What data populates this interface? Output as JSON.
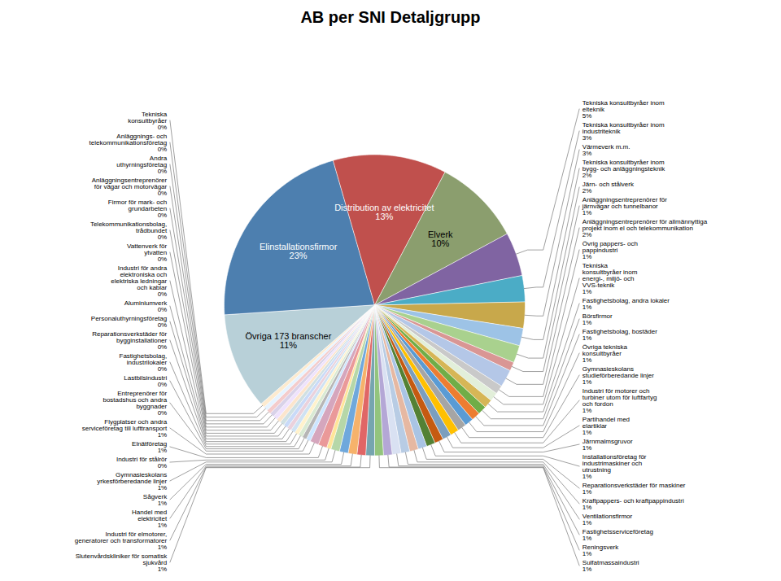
{
  "chart_data": {
    "type": "pie",
    "title": "AB per SNI Detaljgrupp",
    "categories": [
      "Elinstallationsfirmor",
      "Distribution av elektricitet",
      "Elverk",
      "Tekniska konsultbyråer inom\nelteknik",
      "Tekniska konsultbyråer inom\nindustriteknik",
      "Värmeverk m.m.",
      "Tekniska konsultbyråer inom\nbygg- och anläggningsteknik",
      "Järn- och stålverk",
      "Anläggningsentreprenörer för\njärnvägar och tunnelbanor",
      "Anläggningsentreprenörer för allmännyttiga\nprojekt inom el och telekommunikation",
      "Övrig pappers- och\npappindustri",
      "Tekniska\nkonsultbyråer inom\nenergi-, miljö- och\nVVS-teknik",
      "Fastighetsbolag, andra lokaler",
      "Börsfirmor",
      "Fastighetsbolag, bostäder",
      "Övriga tekniska\nkonsultbyråer",
      "Gymnasieskolans\nstudieförberedande linjer",
      "Industri för motorer och\nturbiner utom för luftfartyg\noch fordon",
      "Partihandel med\nelartiklar",
      "Järnmalmsgruvor",
      "Installationsföretag för\nindustrimaskiner och\nutrustning",
      "Reparationsverkstäder för maskiner",
      "Kraftpappers- och kraftpappindustri",
      "Ventilationsfirmor",
      "Fastighetsserviceföretag",
      "Reningsverk",
      "Sulfatmassaindustri",
      "Slutenvårdskliniker för somatisk\nsjukvård",
      "Industri för elmotorer,\ngeneratorer och transformatorer",
      "Handel med\nelektricitet",
      "Sågverk",
      "Gymnasieskolans\nyrkesförberedande linjer",
      "Industri för stålrör",
      "Elnätföretag",
      "Flygplatser och andra\nserviceföretag till lufttransport",
      "Entreprenörer för\nbostadshus och andra\nbyggnader",
      "Lastbilsindustri",
      "Fastighetsbolag,\nindustrilokaler",
      "Reparationsverkstäder för\nbygginstallationer",
      "Personaluthyrningsföretag",
      "Aluminiumverk",
      "Industri för andra\nelektroniska och\nelektriska ledningar\noch kablar",
      "Vattenverk för\nytvatten",
      "Telekommunikationsbolag,\ntrådbundet",
      "Firmor för mark- och\ngrundarbeten",
      "Anläggningsentreprenörer\nför vägar och motorvägar",
      "Andra\nuthyrningsföretag",
      "Anläggnings- och\ntelekommunikationsföretag",
      "Tekniska\nkonsultbyråer",
      "Övriga 173 branscher"
    ],
    "values": [
      23,
      13,
      10,
      5,
      3,
      3,
      2,
      2,
      1,
      2,
      1,
      1,
      1,
      1,
      1,
      1,
      1,
      1,
      1,
      1,
      1,
      1,
      1,
      1,
      1,
      1,
      1,
      1,
      1,
      1,
      1,
      1,
      0.5,
      1,
      1,
      0.5,
      0.5,
      0.5,
      0.5,
      0.5,
      0.5,
      0.5,
      0.5,
      0.5,
      0.5,
      0.5,
      0.5,
      0.5,
      0.5,
      11
    ],
    "value_labels": [
      "23%",
      "13%",
      "10%",
      "5%",
      "3%",
      "3%",
      "2%",
      "2%",
      "1%",
      "2%",
      "1%",
      "1%",
      "1%",
      "1%",
      "1%",
      "1%",
      "1%",
      "1%",
      "1%",
      "1%",
      "1%",
      "1%",
      "1%",
      "1%",
      "1%",
      "1%",
      "1%",
      "1%",
      "1%",
      "1%",
      "1%",
      "1%",
      "0%",
      "1%",
      "1%",
      "0%",
      "0%",
      "0%",
      "0%",
      "0%",
      "0%",
      "0%",
      "0%",
      "0%",
      "0%",
      "0%",
      "0%",
      "0%",
      "0%",
      "11%"
    ],
    "colors": [
      "#4D7FAF",
      "#C0504D",
      "#8B9E6E",
      "#8064A2",
      "#4BACC6",
      "#C8A84B",
      "#9DC3E6",
      "#A9D18E",
      "#D99694",
      "#B4C7E7",
      "#C9C9C9",
      "#E2EFDA",
      "#D6B656",
      "#70AD47",
      "#ED7D31",
      "#5A9BD4",
      "#A5A5A5",
      "#FFC000",
      "#7B9EBE",
      "#C55A11",
      "#538135",
      "#A9C4E4",
      "#E6B8A2",
      "#B8CCE4",
      "#D9E1F2",
      "#B4A7D6",
      "#93C47D",
      "#76A5AF",
      "#E06666",
      "#F6B26B",
      "#6FA8DC",
      "#B6D7A8",
      "#FFE599",
      "#EA9999",
      "#D5A6BD",
      "#CCE5FF",
      "#B6B6B6",
      "#D9EAD3",
      "#FFF2CC",
      "#CFE2F3",
      "#EAD1DC",
      "#C9DAF8",
      "#D0E0E3",
      "#FCE5CD",
      "#EFE2FD",
      "#D9D2E9",
      "#F4CCCC",
      "#E6F3FF",
      "#FDEBD0",
      "#B8D0D8"
    ]
  }
}
